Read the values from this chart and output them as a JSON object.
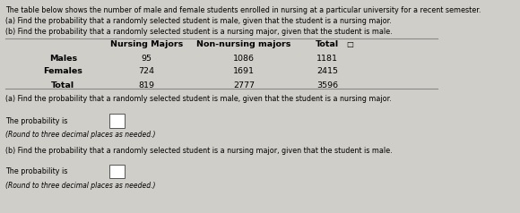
{
  "bg_color": "#d0cec8",
  "text_color": "#000000",
  "title_line": "The table below shows the number of male and female students enrolled in nursing at a particular university for a recent semester.",
  "question_a_header": "(a) Find the probability that a randomly selected student is male, given that the student is a nursing major.",
  "question_b_header": "(b) Find the probability that a randomly selected student is a nursing major, given that the student is male.",
  "col_headers": [
    "Nursing Majors",
    "Non-nursing majors",
    "Total"
  ],
  "row_labels": [
    "Males",
    "Females",
    "Total"
  ],
  "table_data": [
    [
      95,
      1086,
      1181
    ],
    [
      724,
      1691,
      2415
    ],
    [
      819,
      2777,
      3596
    ]
  ],
  "section_a_text": "(a) Find the probability that a randomly selected student is male, given that the student is a nursing major.",
  "prob_a_label": "The probability is",
  "round_a": "(Round to three decimal places as needed.)",
  "section_b_text": "(b) Find the probability that a randomly selected student is a nursing major, given that the student is male.",
  "prob_b_label": "The probability is",
  "round_b": "(Round to three decimal places as needed.)"
}
